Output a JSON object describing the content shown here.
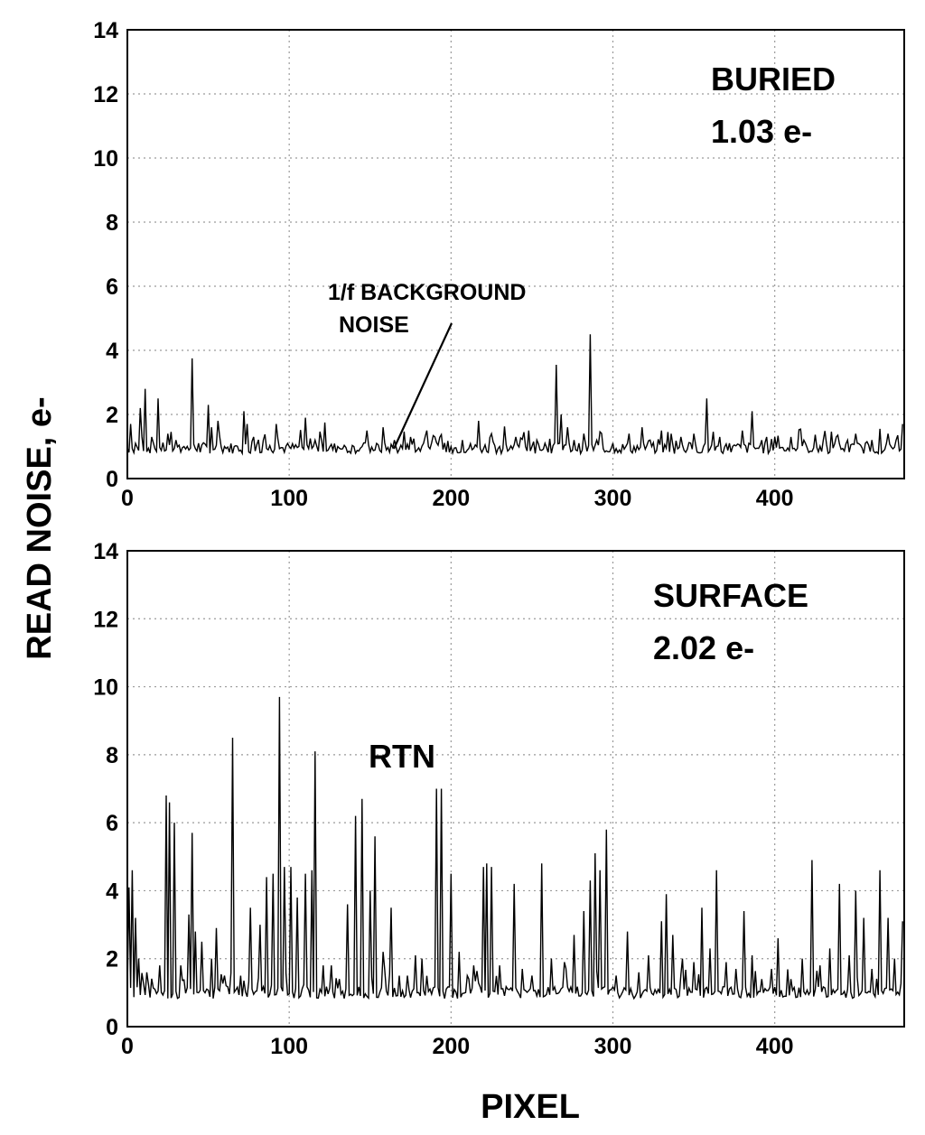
{
  "chart_data": [
    {
      "type": "line",
      "panel": "top",
      "ylabel": "READ NOISE, e-",
      "xlim": [
        0,
        480
      ],
      "ylim": [
        0,
        14
      ],
      "xticks": [
        0,
        100,
        200,
        300,
        400
      ],
      "yticks": [
        0,
        2,
        4,
        6,
        8,
        10,
        12,
        14
      ],
      "grid": true,
      "annotations": [
        {
          "text": "BURIED",
          "kind": "label"
        },
        {
          "text": "1.03 e-",
          "kind": "label"
        },
        {
          "text": "1/f BACKGROUND",
          "kind": "callout"
        },
        {
          "text": "NOISE",
          "kind": "callout"
        }
      ],
      "baseline": 0.9,
      "spikes": [
        [
          2,
          1.7
        ],
        [
          5,
          1.1
        ],
        [
          8,
          2.2
        ],
        [
          11,
          2.8
        ],
        [
          15,
          1.3
        ],
        [
          19,
          2.5
        ],
        [
          25,
          1.4
        ],
        [
          30,
          1.2
        ],
        [
          35,
          1.0
        ],
        [
          40,
          3.75
        ],
        [
          44,
          1.1
        ],
        [
          50,
          2.3
        ],
        [
          52,
          1.6
        ],
        [
          56,
          1.8
        ],
        [
          60,
          1.0
        ],
        [
          66,
          1.0
        ],
        [
          72,
          2.1
        ],
        [
          74,
          1.7
        ],
        [
          78,
          1.3
        ],
        [
          84,
          1.2
        ],
        [
          92,
          1.7
        ],
        [
          100,
          1.0
        ],
        [
          110,
          1.9
        ],
        [
          116,
          1.2
        ],
        [
          122,
          1.75
        ],
        [
          130,
          1.0
        ],
        [
          140,
          1.0
        ],
        [
          148,
          1.5
        ],
        [
          158,
          1.6
        ],
        [
          165,
          1.2
        ],
        [
          175,
          1.3
        ],
        [
          185,
          1.5
        ],
        [
          190,
          1.3
        ],
        [
          200,
          1.0
        ],
        [
          207,
          1.2
        ],
        [
          217,
          1.8
        ],
        [
          225,
          1.4
        ],
        [
          230,
          1.0
        ],
        [
          240,
          1.3
        ],
        [
          248,
          1.5
        ],
        [
          253,
          1.2
        ],
        [
          258,
          1.1
        ],
        [
          265,
          3.55
        ],
        [
          268,
          2.0
        ],
        [
          272,
          1.6
        ],
        [
          276,
          1.2
        ],
        [
          282,
          1.4
        ],
        [
          286,
          4.5
        ],
        [
          290,
          1.2
        ],
        [
          300,
          1.1
        ],
        [
          310,
          1.4
        ],
        [
          318,
          1.6
        ],
        [
          323,
          1.2
        ],
        [
          330,
          1.5
        ],
        [
          336,
          1.4
        ],
        [
          342,
          1.3
        ],
        [
          350,
          1.4
        ],
        [
          358,
          2.5
        ],
        [
          366,
          1.3
        ],
        [
          372,
          1.1
        ],
        [
          380,
          1.5
        ],
        [
          386,
          2.1
        ],
        [
          392,
          1.2
        ],
        [
          400,
          1.3
        ],
        [
          410,
          1.3
        ],
        [
          418,
          1.2
        ],
        [
          430,
          1.2
        ],
        [
          438,
          1.3
        ],
        [
          445,
          1.2
        ],
        [
          450,
          1.4
        ],
        [
          460,
          1.2
        ],
        [
          470,
          1.4
        ],
        [
          475,
          1.2
        ],
        [
          479,
          1.7
        ]
      ]
    },
    {
      "type": "line",
      "panel": "bottom",
      "xlabel": "PIXEL",
      "xlim": [
        0,
        480
      ],
      "ylim": [
        0,
        14
      ],
      "xticks": [
        0,
        100,
        200,
        300,
        400
      ],
      "yticks": [
        0,
        2,
        4,
        6,
        8,
        10,
        12,
        14
      ],
      "grid": true,
      "annotations": [
        {
          "text": "SURFACE",
          "kind": "label"
        },
        {
          "text": "2.02 e-",
          "kind": "label"
        },
        {
          "text": "RTN",
          "kind": "label"
        }
      ],
      "baseline": 0.95,
      "spikes": [
        [
          1,
          4.1
        ],
        [
          3,
          4.6
        ],
        [
          5,
          3.2
        ],
        [
          7,
          2.0
        ],
        [
          12,
          1.6
        ],
        [
          20,
          1.8
        ],
        [
          24,
          6.8
        ],
        [
          26,
          6.6
        ],
        [
          29,
          6.0
        ],
        [
          33,
          1.8
        ],
        [
          38,
          3.3
        ],
        [
          40,
          5.7
        ],
        [
          42,
          2.8
        ],
        [
          46,
          2.5
        ],
        [
          52,
          2.0
        ],
        [
          55,
          2.9
        ],
        [
          60,
          1.5
        ],
        [
          65,
          8.5
        ],
        [
          70,
          1.5
        ],
        [
          76,
          3.5
        ],
        [
          82,
          3.0
        ],
        [
          86,
          4.4
        ],
        [
          90,
          4.5
        ],
        [
          94,
          9.7
        ],
        [
          97,
          4.7
        ],
        [
          101,
          4.7
        ],
        [
          105,
          3.8
        ],
        [
          110,
          4.5
        ],
        [
          114,
          4.6
        ],
        [
          116,
          8.1
        ],
        [
          121,
          1.8
        ],
        [
          126,
          1.8
        ],
        [
          131,
          1.4
        ],
        [
          136,
          3.6
        ],
        [
          141,
          6.2
        ],
        [
          145,
          6.7
        ],
        [
          150,
          4.0
        ],
        [
          153,
          5.6
        ],
        [
          158,
          2.2
        ],
        [
          163,
          3.5
        ],
        [
          168,
          1.5
        ],
        [
          173,
          1.5
        ],
        [
          178,
          2.1
        ],
        [
          182,
          2.0
        ],
        [
          191,
          7.0
        ],
        [
          194,
          7.0
        ],
        [
          200,
          4.5
        ],
        [
          205,
          2.2
        ],
        [
          210,
          1.5
        ],
        [
          214,
          1.8
        ],
        [
          220,
          4.7
        ],
        [
          222,
          4.8
        ],
        [
          225,
          4.7
        ],
        [
          230,
          1.8
        ],
        [
          239,
          4.2
        ],
        [
          244,
          1.7
        ],
        [
          250,
          1.5
        ],
        [
          256,
          4.8
        ],
        [
          262,
          2.0
        ],
        [
          270,
          1.9
        ],
        [
          276,
          2.7
        ],
        [
          282,
          3.4
        ],
        [
          286,
          4.3
        ],
        [
          289,
          5.1
        ],
        [
          292,
          4.6
        ],
        [
          296,
          5.8
        ],
        [
          302,
          1.5
        ],
        [
          309,
          2.8
        ],
        [
          316,
          1.6
        ],
        [
          322,
          2.1
        ],
        [
          330,
          3.1
        ],
        [
          333,
          3.9
        ],
        [
          337,
          2.7
        ],
        [
          343,
          2.0
        ],
        [
          350,
          1.9
        ],
        [
          355,
          3.5
        ],
        [
          360,
          2.3
        ],
        [
          364,
          4.6
        ],
        [
          370,
          1.9
        ],
        [
          376,
          1.7
        ],
        [
          381,
          3.4
        ],
        [
          386,
          2.1
        ],
        [
          392,
          1.4
        ],
        [
          398,
          1.7
        ],
        [
          402,
          2.6
        ],
        [
          410,
          1.4
        ],
        [
          417,
          2.0
        ],
        [
          423,
          4.9
        ],
        [
          428,
          1.8
        ],
        [
          434,
          2.3
        ],
        [
          440,
          4.2
        ],
        [
          446,
          2.1
        ],
        [
          450,
          4.0
        ],
        [
          455,
          3.2
        ],
        [
          460,
          1.7
        ],
        [
          465,
          4.6
        ],
        [
          470,
          3.2
        ],
        [
          474,
          2.0
        ],
        [
          479,
          3.1
        ]
      ]
    }
  ]
}
